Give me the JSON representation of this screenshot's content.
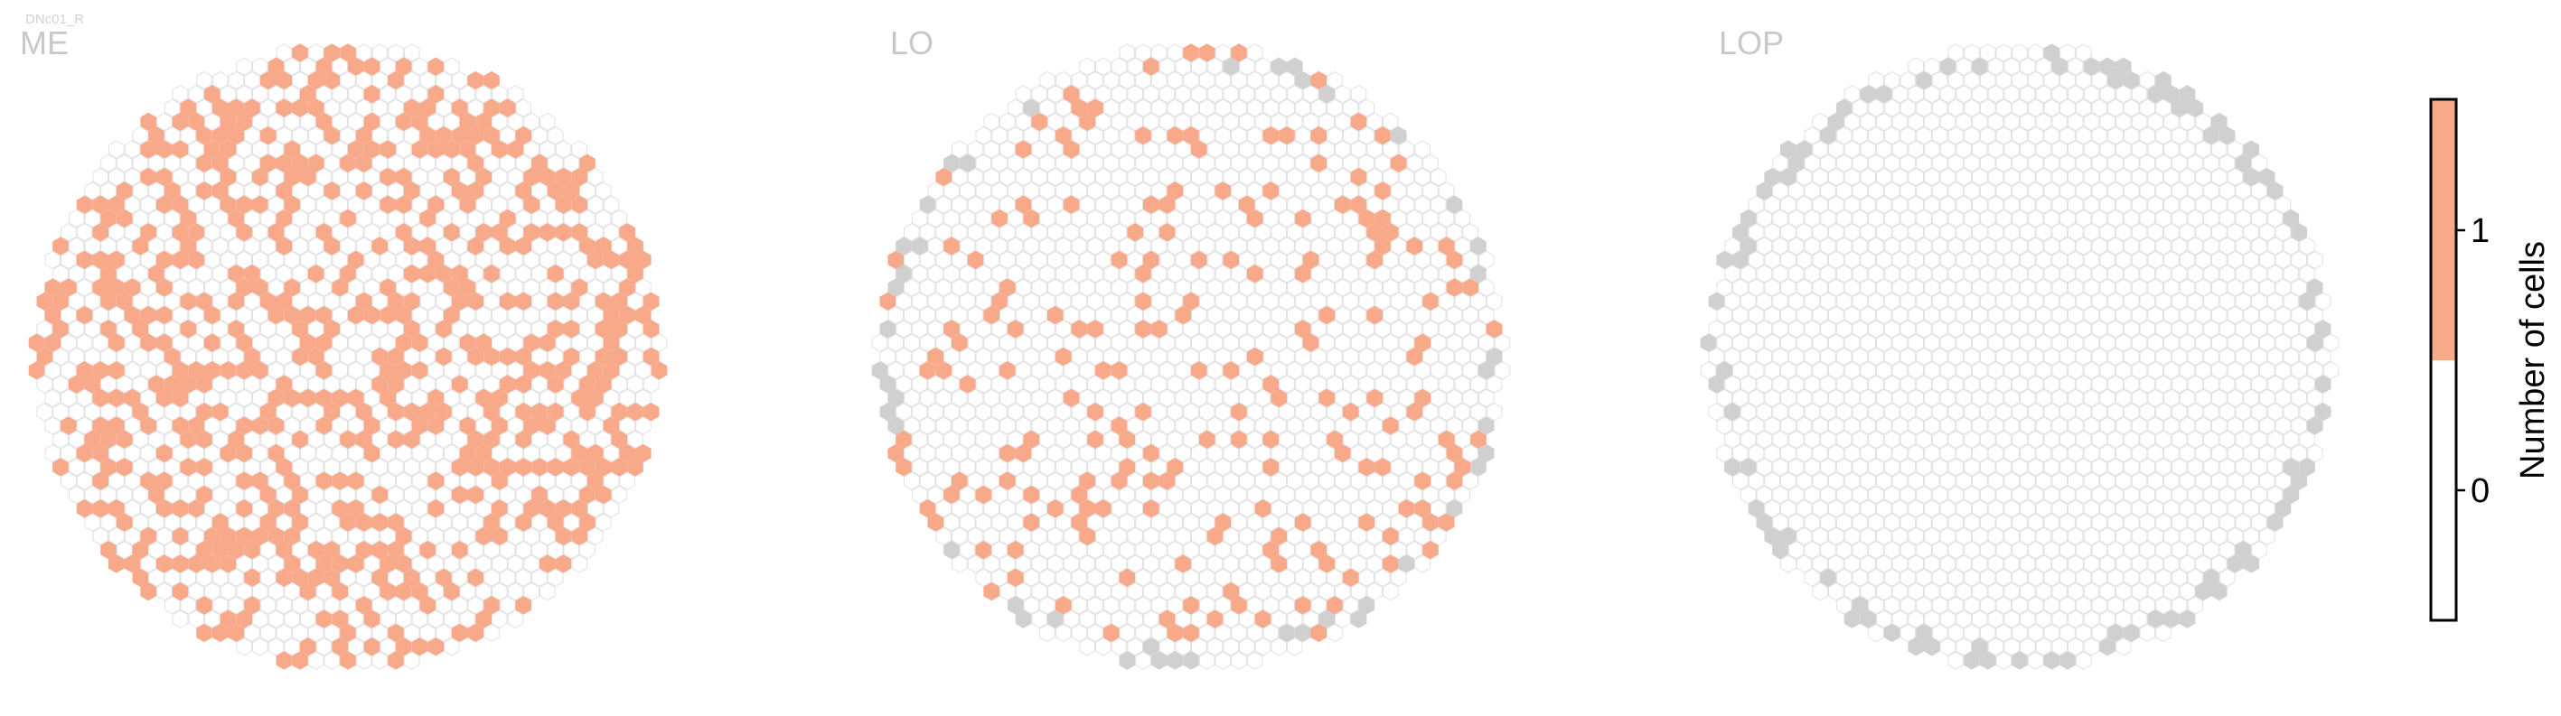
{
  "figure": {
    "neuron_label": "DNc01_R"
  },
  "colors": {
    "hex_empty_fill": "#ffffff",
    "hex_empty_stroke": "#e2e2e2",
    "hex_active_fill": "#f8a98a",
    "hex_border_fill": "#d0d0d0",
    "panel_title": "#c8c8c8",
    "neuron_label": "#d2d2d2",
    "colorbar_outline": "#000000",
    "text": "#000000"
  },
  "chart_data": {
    "type": "heatmap",
    "description_of_panels": [
      "ME",
      "LO",
      "LOP"
    ],
    "panels": [
      {
        "title": "ME",
        "layout_seed": 11,
        "active_fraction": 0.4,
        "border_fraction": 0.0,
        "radius_cols": 19
      },
      {
        "title": "LO",
        "layout_seed": 23,
        "active_fraction": 0.13,
        "border_fraction": 0.3,
        "radius_cols": 19
      },
      {
        "title": "LOP",
        "layout_seed": 37,
        "active_fraction": 0.0,
        "border_fraction": 0.55,
        "radius_cols": 19
      }
    ],
    "colorbar": {
      "label": "Number of cells",
      "ticks": [
        {
          "value": 0,
          "label": "0"
        },
        {
          "value": 1,
          "label": "1"
        }
      ],
      "range": [
        -0.5,
        1.5
      ],
      "bins": [
        {
          "from": -0.5,
          "to": 0.5,
          "color": "#ffffff"
        },
        {
          "from": 0.5,
          "to": 1.5,
          "color": "#f8a98a"
        }
      ]
    }
  }
}
